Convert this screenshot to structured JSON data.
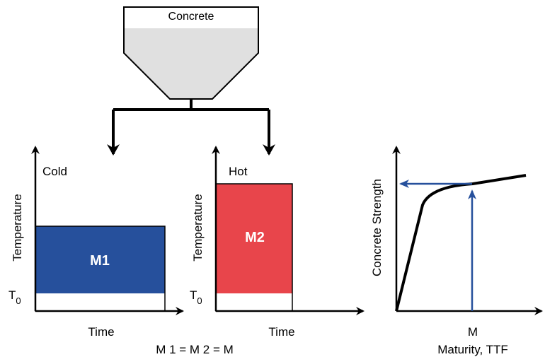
{
  "hopper": {
    "label": "Concrete"
  },
  "cold_panel": {
    "condition": "Cold",
    "y_label": "Temperature",
    "x_label": "Time",
    "t0_main": "T",
    "t0_sub": "0",
    "block_label": "M1",
    "block_color": "#26509c"
  },
  "hot_panel": {
    "condition": "Hot",
    "y_label": "Temperature",
    "x_label": "Time",
    "t0_main": "T",
    "t0_sub": "0",
    "block_label": "M2",
    "block_color": "#e8454b"
  },
  "equation": "M 1 = M 2 = M",
  "strength_chart": {
    "y_label": "Concrete Strength",
    "x_tick": "M",
    "x_label": "Maturity, TTF",
    "curve_color": "#000000",
    "arrow_color": "#26509c"
  }
}
